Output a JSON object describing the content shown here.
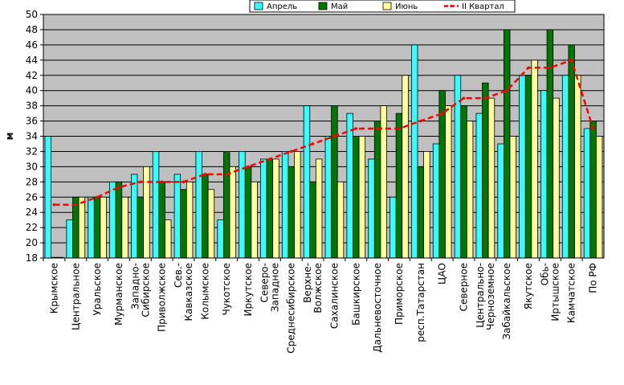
{
  "chart_data": {
    "type": "bar",
    "ylabel": "м",
    "ylim": [
      18,
      50
    ],
    "yticks": [
      18,
      20,
      22,
      24,
      26,
      28,
      30,
      32,
      34,
      36,
      38,
      40,
      42,
      44,
      46,
      48,
      50
    ],
    "grid": true,
    "legend_position": "top-right",
    "categories": [
      [
        "Крымское"
      ],
      [
        "Центральное"
      ],
      [
        "Уральское"
      ],
      [
        "Мурманское"
      ],
      [
        "Западно-",
        "Сибирское"
      ],
      [
        "Приволжское"
      ],
      [
        "Сев.-",
        "Кавказское"
      ],
      [
        "Колымское"
      ],
      [
        "Чукотское"
      ],
      [
        "Иркутское"
      ],
      [
        "Северо-",
        "Западное"
      ],
      [
        "Среднесибирское"
      ],
      [
        "Верхне-",
        "Волжское"
      ],
      [
        "Сахалинское"
      ],
      [
        "Башкирское"
      ],
      [
        "Дальневосточное"
      ],
      [
        "Приморское"
      ],
      [
        "респ.Татарстан"
      ],
      [
        "ЦАО"
      ],
      [
        "Северное"
      ],
      [
        "Центрально-",
        "Черноземное"
      ],
      [
        "Забайкальское"
      ],
      [
        "Якутское"
      ],
      [
        "Обь-",
        "Иртышское"
      ],
      [
        "Камчатское"
      ],
      [
        "По РФ"
      ]
    ],
    "series": [
      {
        "name": "Апрель",
        "kind": "bar",
        "color": "#33ffff",
        "values": [
          34,
          23,
          26,
          28,
          29,
          32,
          29,
          32,
          23,
          32,
          31,
          32,
          38,
          34,
          37,
          31,
          26,
          46,
          33,
          42,
          37,
          33,
          42,
          40,
          42,
          35
        ]
      },
      {
        "name": "Май",
        "kind": "bar",
        "color": "#007700",
        "values": [
          18,
          26,
          26,
          28,
          26,
          28,
          27,
          29,
          32,
          30,
          31,
          30,
          28,
          38,
          34,
          36,
          37,
          30,
          40,
          38,
          41,
          48,
          42,
          48,
          46,
          36
        ]
      },
      {
        "name": "Июнь",
        "kind": "bar",
        "color": "#ffff99",
        "values": [
          18,
          26,
          26,
          26,
          30,
          23,
          28,
          27,
          30,
          28,
          31,
          32,
          31,
          28,
          34,
          38,
          42,
          32,
          38,
          36,
          39,
          34,
          44,
          39,
          42,
          34
        ]
      },
      {
        "name": "II Квартал",
        "kind": "line",
        "color": "#ff0000",
        "values": [
          25,
          25,
          26,
          27.3,
          28,
          28,
          28,
          29,
          29,
          30,
          31,
          32,
          33,
          34,
          35,
          35,
          35,
          36,
          37,
          39,
          39,
          40,
          43,
          43,
          44,
          35
        ]
      }
    ]
  }
}
